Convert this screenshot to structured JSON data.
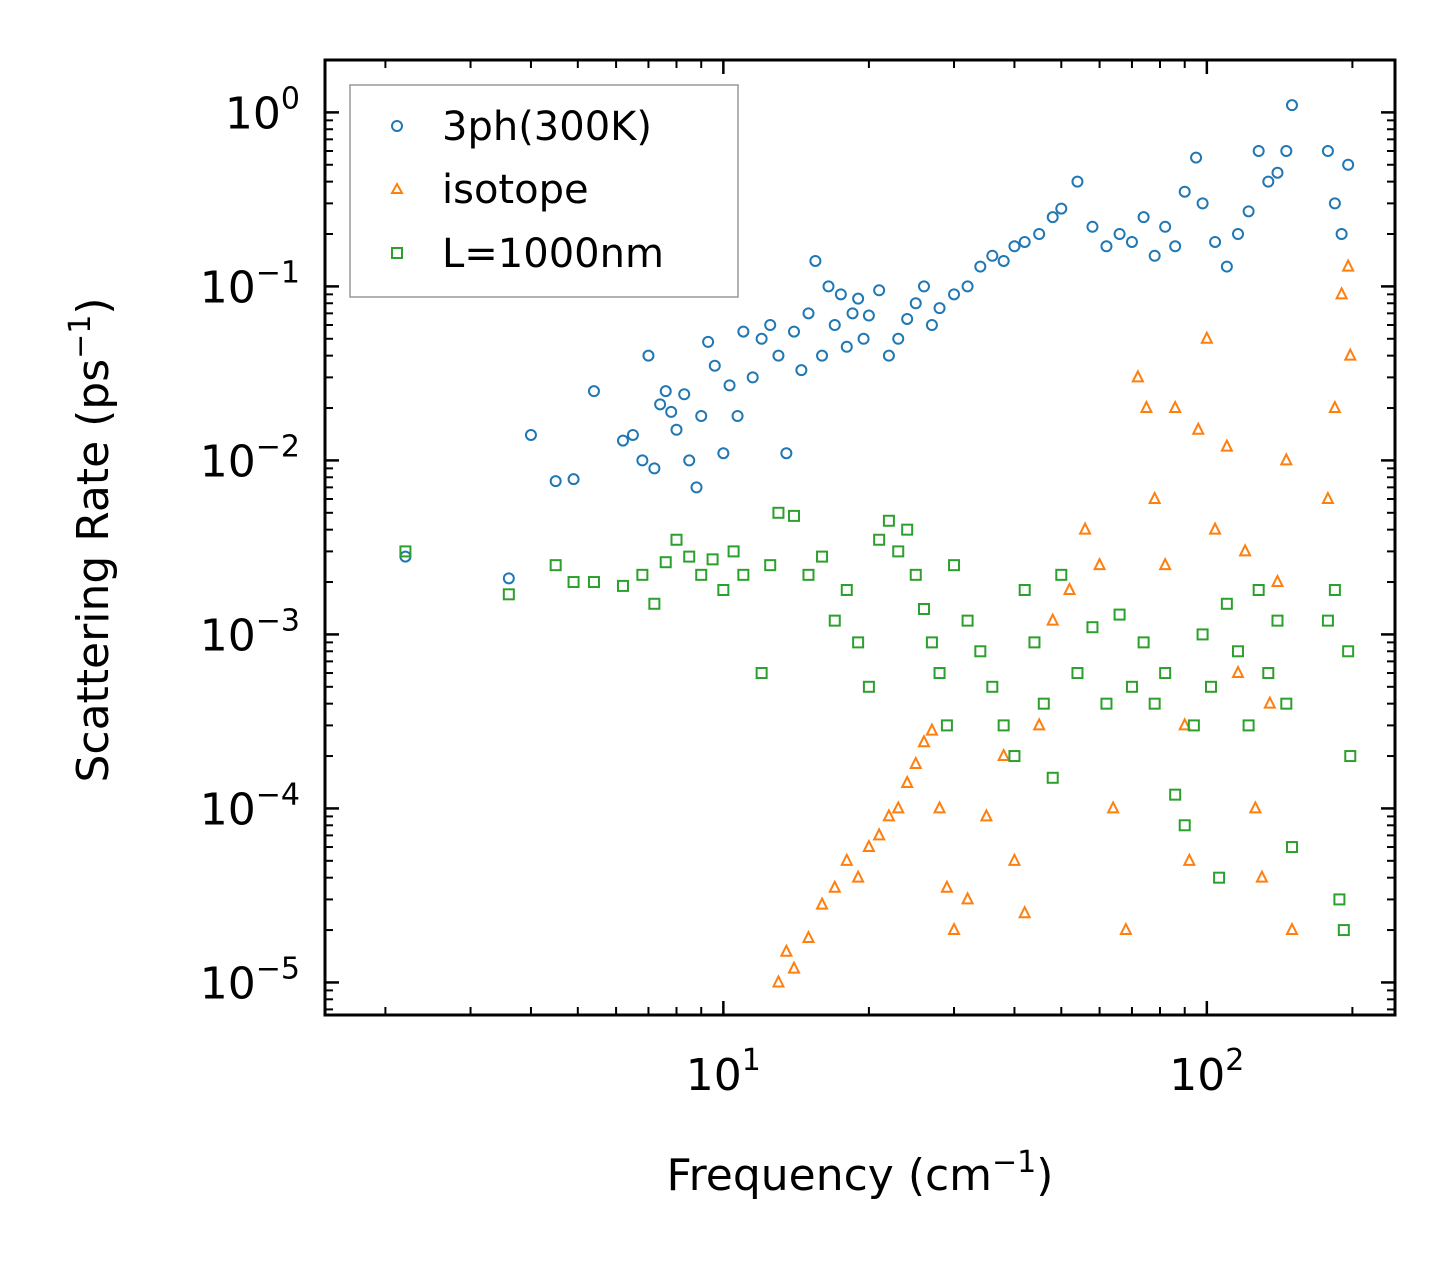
{
  "chart_data": {
    "type": "scatter",
    "xscale": "log",
    "yscale": "log",
    "xlim": [
      1.5,
      245
    ],
    "ylim": [
      6.5e-06,
      2.0
    ],
    "xlabel": {
      "main": "Frequency (cm",
      "sup": "−1",
      "end": ")"
    },
    "ylabel": {
      "main": "Scattering Rate (ps",
      "sup": "−1",
      "end": ")"
    },
    "xticks": [
      {
        "value": 10,
        "base": "10",
        "exp": "1"
      },
      {
        "value": 100,
        "base": "10",
        "exp": "2"
      }
    ],
    "yticks": [
      {
        "value": 1,
        "base": "10",
        "exp": "0"
      },
      {
        "value": 0.1,
        "base": "10",
        "exp": "−1"
      },
      {
        "value": 0.01,
        "base": "10",
        "exp": "−2"
      },
      {
        "value": 0.001,
        "base": "10",
        "exp": "−3"
      },
      {
        "value": 0.0001,
        "base": "10",
        "exp": "−4"
      },
      {
        "value": 1e-05,
        "base": "10",
        "exp": "−5"
      }
    ],
    "legend_position": "top-left",
    "series": [
      {
        "name": "3ph(300K)",
        "marker": "circle",
        "color": "#1f77b4",
        "points": [
          [
            2.2,
            0.0028
          ],
          [
            3.6,
            0.0021
          ],
          [
            4.0,
            0.014
          ],
          [
            4.5,
            0.0076
          ],
          [
            4.9,
            0.0078
          ],
          [
            5.4,
            0.025
          ],
          [
            6.2,
            0.013
          ],
          [
            6.5,
            0.014
          ],
          [
            6.8,
            0.01
          ],
          [
            7.0,
            0.04
          ],
          [
            7.2,
            0.009
          ],
          [
            7.4,
            0.021
          ],
          [
            7.6,
            0.025
          ],
          [
            7.8,
            0.019
          ],
          [
            8.0,
            0.015
          ],
          [
            8.3,
            0.024
          ],
          [
            8.5,
            0.01
          ],
          [
            8.8,
            0.007
          ],
          [
            9.0,
            0.018
          ],
          [
            9.3,
            0.048
          ],
          [
            9.6,
            0.035
          ],
          [
            10.0,
            0.011
          ],
          [
            10.3,
            0.027
          ],
          [
            10.7,
            0.018
          ],
          [
            11.0,
            0.055
          ],
          [
            11.5,
            0.03
          ],
          [
            12.0,
            0.05
          ],
          [
            12.5,
            0.06
          ],
          [
            13.0,
            0.04
          ],
          [
            13.5,
            0.011
          ],
          [
            14.0,
            0.055
          ],
          [
            14.5,
            0.033
          ],
          [
            15.0,
            0.07
          ],
          [
            15.5,
            0.14
          ],
          [
            16.0,
            0.04
          ],
          [
            16.5,
            0.1
          ],
          [
            17.0,
            0.06
          ],
          [
            17.5,
            0.09
          ],
          [
            18.0,
            0.045
          ],
          [
            18.5,
            0.07
          ],
          [
            19.0,
            0.085
          ],
          [
            19.5,
            0.05
          ],
          [
            20.0,
            0.068
          ],
          [
            21.0,
            0.095
          ],
          [
            22.0,
            0.04
          ],
          [
            23.0,
            0.05
          ],
          [
            24.0,
            0.065
          ],
          [
            25.0,
            0.08
          ],
          [
            26.0,
            0.1
          ],
          [
            27.0,
            0.06
          ],
          [
            28.0,
            0.075
          ],
          [
            30.0,
            0.09
          ],
          [
            32.0,
            0.1
          ],
          [
            34.0,
            0.13
          ],
          [
            36.0,
            0.15
          ],
          [
            38.0,
            0.14
          ],
          [
            40.0,
            0.17
          ],
          [
            42.0,
            0.18
          ],
          [
            45.0,
            0.2
          ],
          [
            48.0,
            0.25
          ],
          [
            50.0,
            0.28
          ],
          [
            54.0,
            0.4
          ],
          [
            58.0,
            0.22
          ],
          [
            62.0,
            0.17
          ],
          [
            66.0,
            0.2
          ],
          [
            70.0,
            0.18
          ],
          [
            74.0,
            0.25
          ],
          [
            78.0,
            0.15
          ],
          [
            82.0,
            0.22
          ],
          [
            86.0,
            0.17
          ],
          [
            90.0,
            0.35
          ],
          [
            95.0,
            0.55
          ],
          [
            98.0,
            0.3
          ],
          [
            104.0,
            0.18
          ],
          [
            110.0,
            0.13
          ],
          [
            116.0,
            0.2
          ],
          [
            122.0,
            0.27
          ],
          [
            128.0,
            0.6
          ],
          [
            134.0,
            0.4
          ],
          [
            140.0,
            0.45
          ],
          [
            146.0,
            0.6
          ],
          [
            150.0,
            1.1
          ],
          [
            178.0,
            0.6
          ],
          [
            184.0,
            0.3
          ],
          [
            190.0,
            0.2
          ],
          [
            196.0,
            0.5
          ]
        ]
      },
      {
        "name": "isotope",
        "marker": "triangle",
        "color": "#ff7f0e",
        "points": [
          [
            13.0,
            1e-05
          ],
          [
            13.5,
            1.5e-05
          ],
          [
            14.0,
            1.2e-05
          ],
          [
            15.0,
            1.8e-05
          ],
          [
            16.0,
            2.8e-05
          ],
          [
            17.0,
            3.5e-05
          ],
          [
            18.0,
            5e-05
          ],
          [
            19.0,
            4e-05
          ],
          [
            20.0,
            6e-05
          ],
          [
            21.0,
            7e-05
          ],
          [
            22.0,
            9e-05
          ],
          [
            23.0,
            0.0001
          ],
          [
            24.0,
            0.00014
          ],
          [
            25.0,
            0.00018
          ],
          [
            26.0,
            0.00024
          ],
          [
            27.0,
            0.00028
          ],
          [
            28.0,
            0.0001
          ],
          [
            29.0,
            3.5e-05
          ],
          [
            30.0,
            2e-05
          ],
          [
            32.0,
            3e-05
          ],
          [
            35.0,
            9e-05
          ],
          [
            38.0,
            0.0002
          ],
          [
            40.0,
            5e-05
          ],
          [
            42.0,
            2.5e-05
          ],
          [
            45.0,
            0.0003
          ],
          [
            48.0,
            0.0012
          ],
          [
            52.0,
            0.0018
          ],
          [
            56.0,
            0.004
          ],
          [
            60.0,
            0.0025
          ],
          [
            64.0,
            0.0001
          ],
          [
            68.0,
            2e-05
          ],
          [
            72.0,
            0.03
          ],
          [
            75.0,
            0.02
          ],
          [
            78.0,
            0.006
          ],
          [
            82.0,
            0.0025
          ],
          [
            86.0,
            0.02
          ],
          [
            90.0,
            0.0003
          ],
          [
            92.0,
            5e-05
          ],
          [
            96.0,
            0.015
          ],
          [
            100.0,
            0.05
          ],
          [
            104.0,
            0.004
          ],
          [
            110.0,
            0.012
          ],
          [
            116.0,
            0.0006
          ],
          [
            120.0,
            0.003
          ],
          [
            126.0,
            0.0001
          ],
          [
            130.0,
            4e-05
          ],
          [
            135.0,
            0.0004
          ],
          [
            140.0,
            0.002
          ],
          [
            146.0,
            0.01
          ],
          [
            150.0,
            2e-05
          ],
          [
            178.0,
            0.006
          ],
          [
            184.0,
            0.02
          ],
          [
            190.0,
            0.09
          ],
          [
            196.0,
            0.13
          ],
          [
            198.0,
            0.04
          ]
        ]
      },
      {
        "name": "L=1000nm",
        "marker": "square",
        "color": "#2ca02c",
        "points": [
          [
            2.2,
            0.003
          ],
          [
            3.6,
            0.0017
          ],
          [
            4.5,
            0.0025
          ],
          [
            4.9,
            0.002
          ],
          [
            5.4,
            0.002
          ],
          [
            6.2,
            0.0019
          ],
          [
            6.8,
            0.0022
          ],
          [
            7.2,
            0.0015
          ],
          [
            7.6,
            0.0026
          ],
          [
            8.0,
            0.0035
          ],
          [
            8.5,
            0.0028
          ],
          [
            9.0,
            0.0022
          ],
          [
            9.5,
            0.0027
          ],
          [
            10.0,
            0.0018
          ],
          [
            10.5,
            0.003
          ],
          [
            11.0,
            0.0022
          ],
          [
            12.0,
            0.0006
          ],
          [
            12.5,
            0.0025
          ],
          [
            13.0,
            0.005
          ],
          [
            14.0,
            0.0048
          ],
          [
            15.0,
            0.0022
          ],
          [
            16.0,
            0.0028
          ],
          [
            17.0,
            0.0012
          ],
          [
            18.0,
            0.0018
          ],
          [
            19.0,
            0.0009
          ],
          [
            20.0,
            0.0005
          ],
          [
            21.0,
            0.0035
          ],
          [
            22.0,
            0.0045
          ],
          [
            23.0,
            0.003
          ],
          [
            24.0,
            0.004
          ],
          [
            25.0,
            0.0022
          ],
          [
            26.0,
            0.0014
          ],
          [
            27.0,
            0.0009
          ],
          [
            28.0,
            0.0006
          ],
          [
            29.0,
            0.0003
          ],
          [
            30.0,
            0.0025
          ],
          [
            32.0,
            0.0012
          ],
          [
            34.0,
            0.0008
          ],
          [
            36.0,
            0.0005
          ],
          [
            38.0,
            0.0003
          ],
          [
            40.0,
            0.0002
          ],
          [
            42.0,
            0.0018
          ],
          [
            44.0,
            0.0009
          ],
          [
            46.0,
            0.0004
          ],
          [
            48.0,
            0.00015
          ],
          [
            50.0,
            0.0022
          ],
          [
            54.0,
            0.0006
          ],
          [
            58.0,
            0.0011
          ],
          [
            62.0,
            0.0004
          ],
          [
            66.0,
            0.0013
          ],
          [
            70.0,
            0.0005
          ],
          [
            74.0,
            0.0009
          ],
          [
            78.0,
            0.0004
          ],
          [
            82.0,
            0.0006
          ],
          [
            86.0,
            0.00012
          ],
          [
            90.0,
            8e-05
          ],
          [
            94.0,
            0.0003
          ],
          [
            98.0,
            0.001
          ],
          [
            102.0,
            0.0005
          ],
          [
            106.0,
            4e-05
          ],
          [
            110.0,
            0.0015
          ],
          [
            116.0,
            0.0008
          ],
          [
            122.0,
            0.0003
          ],
          [
            128.0,
            0.0018
          ],
          [
            134.0,
            0.0006
          ],
          [
            140.0,
            0.0012
          ],
          [
            146.0,
            0.0004
          ],
          [
            150.0,
            6e-05
          ],
          [
            178.0,
            0.0012
          ],
          [
            184.0,
            0.0018
          ],
          [
            188.0,
            3e-05
          ],
          [
            192.0,
            2e-05
          ],
          [
            196.0,
            0.0008
          ],
          [
            198.0,
            0.0002
          ]
        ]
      }
    ]
  }
}
